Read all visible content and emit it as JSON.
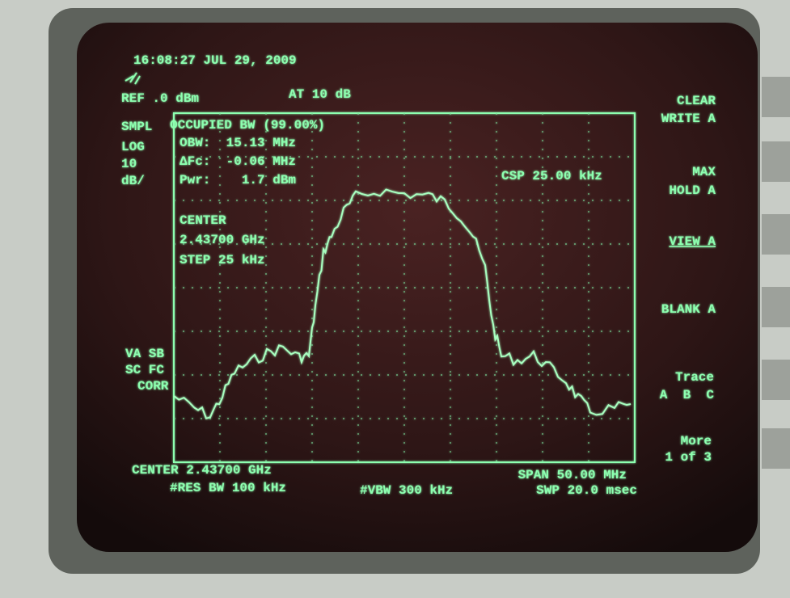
{
  "header": {
    "timestamp": "16:08:27 JUL 29, 2009",
    "reference": "REF .0 dBm",
    "attenuation": "AT 10 dB"
  },
  "left_annotations": [
    "SMPL",
    "LOG",
    "10",
    "dB/",
    "VA SB",
    "SC FC",
    "CORR"
  ],
  "measurement": {
    "title": "OCCUPIED BW (99.00%)",
    "lines": [
      "OBW:  15.13 MHz",
      "ΔFc:  -0.06 MHz",
      "Pwr:    1.7 dBm"
    ],
    "csp": "CSP 25.00 kHz",
    "center_label": "CENTER",
    "center_value": "2.43700 GHz",
    "step": "STEP 25 kHz"
  },
  "softkeys": [
    [
      "CLEAR",
      "WRITE A"
    ],
    [
      "MAX",
      "HOLD A"
    ],
    [
      "VIEW A"
    ],
    [
      "BLANK A"
    ],
    [
      "Trace",
      "A  B  C"
    ],
    [
      "More",
      "1 of 3"
    ]
  ],
  "footer": {
    "center": "CENTER 2.43700 GHz",
    "res_bw": "#RES BW 100 kHz",
    "vbw": "#VBW 300 kHz",
    "span": "SPAN 50.00 MHz",
    "sweep": "SWP 20.0 msec"
  }
}
